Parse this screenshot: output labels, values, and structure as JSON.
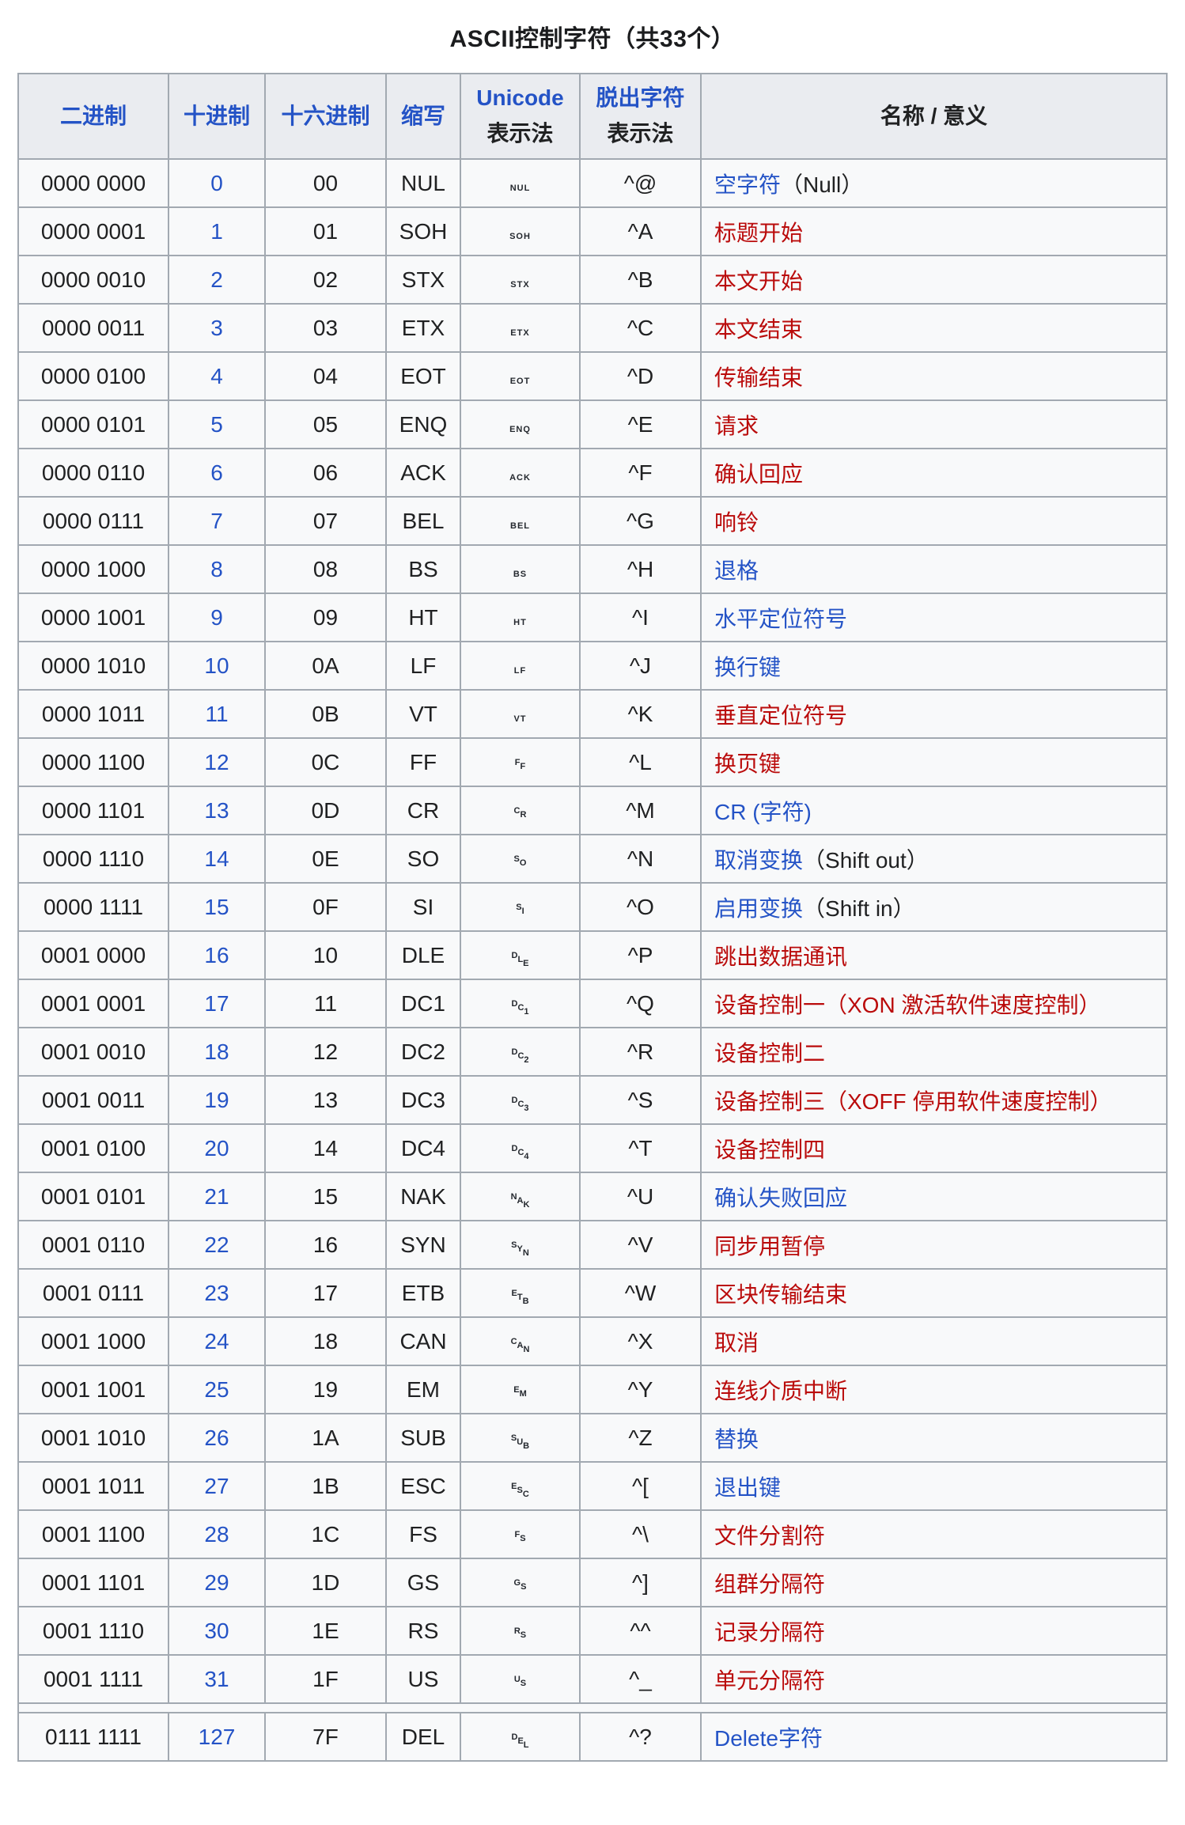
{
  "title": "ASCII控制字符（共33个）",
  "colors": {
    "link_blue": "#2453c6",
    "link_red": "#ba0b0b",
    "header_bg": "#eaecf0",
    "cell_bg": "#f8f9fa",
    "border": "#a2a9b1",
    "text": "#202122"
  },
  "table": {
    "headers": [
      {
        "id": "binary",
        "lines": [
          {
            "text": "二进制",
            "color": "blue",
            "link": true
          }
        ]
      },
      {
        "id": "decimal",
        "lines": [
          {
            "text": "十进制",
            "color": "blue",
            "link": true
          }
        ]
      },
      {
        "id": "hex",
        "lines": [
          {
            "text": "十六进制",
            "color": "blue",
            "link": true
          }
        ]
      },
      {
        "id": "abbr",
        "lines": [
          {
            "text": "缩写",
            "color": "blue",
            "link": true
          }
        ]
      },
      {
        "id": "unicode",
        "lines": [
          {
            "text": "Unicode",
            "color": "blue",
            "link": true
          },
          {
            "text": "表示法",
            "color": "black",
            "link": false
          }
        ]
      },
      {
        "id": "escape",
        "lines": [
          {
            "text": "脱出字符",
            "color": "blue",
            "link": true
          },
          {
            "text": "表示法",
            "color": "black",
            "link": false
          }
        ]
      },
      {
        "id": "meaning",
        "lines": [
          {
            "text": "名称 / 意义",
            "color": "black",
            "link": false
          }
        ]
      }
    ],
    "rows": [
      {
        "bin": "0000 0000",
        "dec": "0",
        "hex": "00",
        "abbr": "NUL",
        "uni_char": "␀",
        "uni_style": "flat",
        "caret": "^@",
        "name": [
          {
            "text": "空字符",
            "color": "blue"
          },
          {
            "text": "（Null）",
            "color": "black"
          }
        ]
      },
      {
        "bin": "0000 0001",
        "dec": "1",
        "hex": "01",
        "abbr": "SOH",
        "uni_char": "␁",
        "uni_style": "flat",
        "caret": "^A",
        "name": [
          {
            "text": "标题开始",
            "color": "red"
          }
        ]
      },
      {
        "bin": "0000 0010",
        "dec": "2",
        "hex": "02",
        "abbr": "STX",
        "uni_char": "␂",
        "uni_style": "flat",
        "caret": "^B",
        "name": [
          {
            "text": "本文开始",
            "color": "red"
          }
        ]
      },
      {
        "bin": "0000 0011",
        "dec": "3",
        "hex": "03",
        "abbr": "ETX",
        "uni_char": "␃",
        "uni_style": "flat",
        "caret": "^C",
        "name": [
          {
            "text": "本文结束",
            "color": "red"
          }
        ]
      },
      {
        "bin": "0000 0100",
        "dec": "4",
        "hex": "04",
        "abbr": "EOT",
        "uni_char": "␄",
        "uni_style": "flat",
        "caret": "^D",
        "name": [
          {
            "text": "传输结束",
            "color": "red"
          }
        ]
      },
      {
        "bin": "0000 0101",
        "dec": "5",
        "hex": "05",
        "abbr": "ENQ",
        "uni_char": "␅",
        "uni_style": "flat",
        "caret": "^E",
        "name": [
          {
            "text": "请求",
            "color": "red"
          }
        ]
      },
      {
        "bin": "0000 0110",
        "dec": "6",
        "hex": "06",
        "abbr": "ACK",
        "uni_char": "␆",
        "uni_style": "flat",
        "caret": "^F",
        "name": [
          {
            "text": "确认回应",
            "color": "red"
          }
        ]
      },
      {
        "bin": "0000 0111",
        "dec": "7",
        "hex": "07",
        "abbr": "BEL",
        "uni_char": "␇",
        "uni_style": "flat",
        "caret": "^G",
        "name": [
          {
            "text": "响铃",
            "color": "red"
          }
        ]
      },
      {
        "bin": "0000 1000",
        "dec": "8",
        "hex": "08",
        "abbr": "BS",
        "uni_char": "␈",
        "uni_style": "flat",
        "caret": "^H",
        "name": [
          {
            "text": "退格",
            "color": "blue"
          }
        ]
      },
      {
        "bin": "0000 1001",
        "dec": "9",
        "hex": "09",
        "abbr": "HT",
        "uni_char": "␉",
        "uni_style": "flat",
        "caret": "^I",
        "name": [
          {
            "text": "水平定位符号",
            "color": "blue"
          }
        ]
      },
      {
        "bin": "0000 1010",
        "dec": "10",
        "hex": "0A",
        "abbr": "LF",
        "uni_char": "␊",
        "uni_style": "flat",
        "caret": "^J",
        "name": [
          {
            "text": "换行键",
            "color": "blue"
          }
        ]
      },
      {
        "bin": "0000 1011",
        "dec": "11",
        "hex": "0B",
        "abbr": "VT",
        "uni_char": "␋",
        "uni_style": "flat",
        "caret": "^K",
        "name": [
          {
            "text": "垂直定位符号",
            "color": "red"
          }
        ]
      },
      {
        "bin": "0000 1100",
        "dec": "12",
        "hex": "0C",
        "abbr": "FF",
        "uni_char": "␌",
        "uni_style": "stair",
        "caret": "^L",
        "name": [
          {
            "text": "换页键",
            "color": "red"
          }
        ]
      },
      {
        "bin": "0000 1101",
        "dec": "13",
        "hex": "0D",
        "abbr": "CR",
        "uni_char": "␍",
        "uni_style": "stair",
        "caret": "^M",
        "name": [
          {
            "text": "CR (字符)",
            "color": "blue"
          }
        ]
      },
      {
        "bin": "0000 1110",
        "dec": "14",
        "hex": "0E",
        "abbr": "SO",
        "uni_char": "␎",
        "uni_style": "stair",
        "caret": "^N",
        "name": [
          {
            "text": "取消变换",
            "color": "blue"
          },
          {
            "text": "（Shift out）",
            "color": "black"
          }
        ]
      },
      {
        "bin": "0000 1111",
        "dec": "15",
        "hex": "0F",
        "abbr": "SI",
        "uni_char": "␏",
        "uni_style": "stair",
        "caret": "^O",
        "name": [
          {
            "text": "启用变换",
            "color": "blue"
          },
          {
            "text": "（Shift in）",
            "color": "black"
          }
        ]
      },
      {
        "bin": "0001 0000",
        "dec": "16",
        "hex": "10",
        "abbr": "DLE",
        "uni_char": "␐",
        "uni_style": "stair",
        "caret": "^P",
        "name": [
          {
            "text": "跳出数据通讯",
            "color": "red"
          }
        ]
      },
      {
        "bin": "0001 0001",
        "dec": "17",
        "hex": "11",
        "abbr": "DC1",
        "uni_char": "␑",
        "uni_style": "stair",
        "caret": "^Q",
        "name": [
          {
            "text": "设备控制一（XON 激活软件速度控制）",
            "color": "red"
          }
        ]
      },
      {
        "bin": "0001 0010",
        "dec": "18",
        "hex": "12",
        "abbr": "DC2",
        "uni_char": "␒",
        "uni_style": "stair",
        "caret": "^R",
        "name": [
          {
            "text": "设备控制二",
            "color": "red"
          }
        ]
      },
      {
        "bin": "0001 0011",
        "dec": "19",
        "hex": "13",
        "abbr": "DC3",
        "uni_char": "␓",
        "uni_style": "stair",
        "caret": "^S",
        "name": [
          {
            "text": "设备控制三（XOFF 停用软件速度控制）",
            "color": "red"
          }
        ]
      },
      {
        "bin": "0001 0100",
        "dec": "20",
        "hex": "14",
        "abbr": "DC4",
        "uni_char": "␔",
        "uni_style": "stair",
        "caret": "^T",
        "name": [
          {
            "text": "设备控制四",
            "color": "red"
          }
        ]
      },
      {
        "bin": "0001 0101",
        "dec": "21",
        "hex": "15",
        "abbr": "NAK",
        "uni_char": "␕",
        "uni_style": "stair",
        "caret": "^U",
        "name": [
          {
            "text": "确认失败回应",
            "color": "blue"
          }
        ]
      },
      {
        "bin": "0001 0110",
        "dec": "22",
        "hex": "16",
        "abbr": "SYN",
        "uni_char": "␖",
        "uni_style": "stair",
        "caret": "^V",
        "name": [
          {
            "text": "同步用暂停",
            "color": "red"
          }
        ]
      },
      {
        "bin": "0001 0111",
        "dec": "23",
        "hex": "17",
        "abbr": "ETB",
        "uni_char": "␗",
        "uni_style": "stair",
        "caret": "^W",
        "name": [
          {
            "text": "区块传输结束",
            "color": "red"
          }
        ]
      },
      {
        "bin": "0001 1000",
        "dec": "24",
        "hex": "18",
        "abbr": "CAN",
        "uni_char": "␘",
        "uni_style": "stair",
        "caret": "^X",
        "name": [
          {
            "text": "取消",
            "color": "red"
          }
        ]
      },
      {
        "bin": "0001 1001",
        "dec": "25",
        "hex": "19",
        "abbr": "EM",
        "uni_char": "␙",
        "uni_style": "stair",
        "caret": "^Y",
        "name": [
          {
            "text": "连线介质中断",
            "color": "red"
          }
        ]
      },
      {
        "bin": "0001 1010",
        "dec": "26",
        "hex": "1A",
        "abbr": "SUB",
        "uni_char": "␚",
        "uni_style": "stair",
        "caret": "^Z",
        "name": [
          {
            "text": "替换",
            "color": "blue"
          }
        ]
      },
      {
        "bin": "0001 1011",
        "dec": "27",
        "hex": "1B",
        "abbr": "ESC",
        "uni_char": "␛",
        "uni_style": "stair",
        "caret": "^[",
        "name": [
          {
            "text": "退出键",
            "color": "blue"
          }
        ]
      },
      {
        "bin": "0001 1100",
        "dec": "28",
        "hex": "1C",
        "abbr": "FS",
        "uni_char": "␜",
        "uni_style": "stair",
        "caret": "^\\",
        "name": [
          {
            "text": "文件分割符",
            "color": "red"
          }
        ]
      },
      {
        "bin": "0001 1101",
        "dec": "29",
        "hex": "1D",
        "abbr": "GS",
        "uni_char": "␝",
        "uni_style": "stair",
        "caret": "^]",
        "name": [
          {
            "text": "组群分隔符",
            "color": "red"
          }
        ]
      },
      {
        "bin": "0001 1110",
        "dec": "30",
        "hex": "1E",
        "abbr": "RS",
        "uni_char": "␞",
        "uni_style": "stair",
        "caret": "^^",
        "name": [
          {
            "text": "记录分隔符",
            "color": "red"
          }
        ]
      },
      {
        "bin": "0001 1111",
        "dec": "31",
        "hex": "1F",
        "abbr": "US",
        "uni_char": "␟",
        "uni_style": "stair",
        "caret": "^_",
        "name": [
          {
            "text": "单元分隔符",
            "color": "red"
          }
        ]
      },
      {
        "separator": true
      },
      {
        "bin": "0111 1111",
        "dec": "127",
        "hex": "7F",
        "abbr": "DEL",
        "uni_char": "␡",
        "uni_style": "stair",
        "caret": "^?",
        "name": [
          {
            "text": "Delete字符",
            "color": "blue"
          }
        ]
      }
    ]
  }
}
